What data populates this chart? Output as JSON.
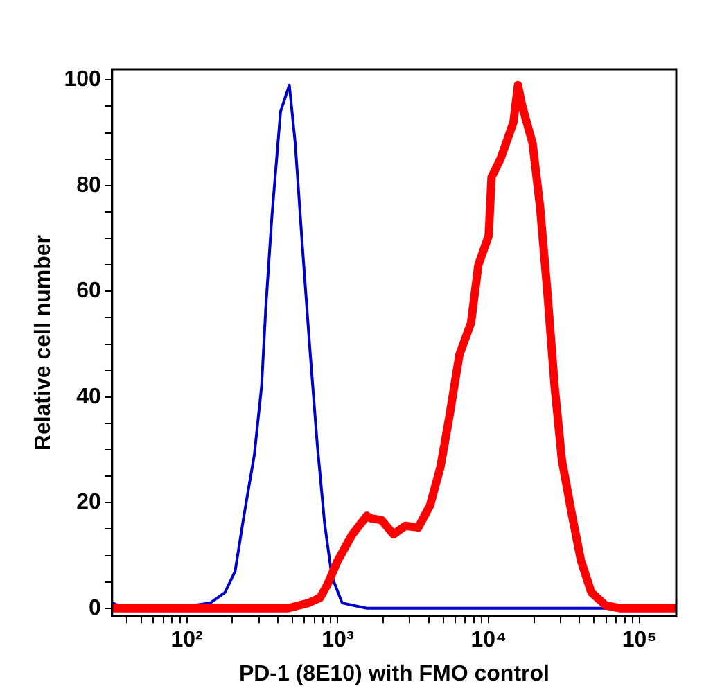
{
  "chart_data": {
    "type": "line",
    "xlabel": "PD-1 (8E10) with FMO control",
    "ylabel": "Relative cell number",
    "log": "x",
    "grid": false,
    "legend": false,
    "marker": "none",
    "xlim": [
      32,
      175000
    ],
    "ylim": [
      -1.5,
      102
    ],
    "xticks": [
      {
        "value": 40,
        "label": null
      },
      {
        "value": 50,
        "label": null
      },
      {
        "value": 60,
        "label": null
      },
      {
        "value": 70,
        "label": null
      },
      {
        "value": 80,
        "label": null
      },
      {
        "value": 90,
        "label": null
      },
      {
        "value": 100,
        "label": "10²"
      },
      {
        "value": 200,
        "label": null
      },
      {
        "value": 300,
        "label": null
      },
      {
        "value": 400,
        "label": null
      },
      {
        "value": 500,
        "label": null
      },
      {
        "value": 600,
        "label": null
      },
      {
        "value": 700,
        "label": null
      },
      {
        "value": 800,
        "label": null
      },
      {
        "value": 900,
        "label": null
      },
      {
        "value": 1000,
        "label": "10³"
      },
      {
        "value": 2000,
        "label": null
      },
      {
        "value": 3000,
        "label": null
      },
      {
        "value": 4000,
        "label": null
      },
      {
        "value": 5000,
        "label": null
      },
      {
        "value": 6000,
        "label": null
      },
      {
        "value": 7000,
        "label": null
      },
      {
        "value": 8000,
        "label": null
      },
      {
        "value": 9000,
        "label": null
      },
      {
        "value": 10000,
        "label": "10⁴"
      },
      {
        "value": 20000,
        "label": null
      },
      {
        "value": 30000,
        "label": null
      },
      {
        "value": 40000,
        "label": null
      },
      {
        "value": 50000,
        "label": null
      },
      {
        "value": 60000,
        "label": null
      },
      {
        "value": 70000,
        "label": null
      },
      {
        "value": 80000,
        "label": null
      },
      {
        "value": 90000,
        "label": null
      },
      {
        "value": 100000,
        "label": "10⁵"
      }
    ],
    "yticks": [
      0,
      {
        "value": 5,
        "label": null
      },
      {
        "value": 10,
        "label": null
      },
      {
        "value": 15,
        "label": null
      },
      20,
      {
        "value": 25,
        "label": null
      },
      {
        "value": 30,
        "label": null
      },
      {
        "value": 35,
        "label": null
      },
      40,
      {
        "value": 45,
        "label": null
      },
      {
        "value": 50,
        "label": null
      },
      {
        "value": 55,
        "label": null
      },
      60,
      {
        "value": 65,
        "label": null
      },
      {
        "value": 70,
        "label": null
      },
      {
        "value": 75,
        "label": null
      },
      80,
      {
        "value": 85,
        "label": null
      },
      {
        "value": 90,
        "label": null
      },
      {
        "value": 95,
        "label": null
      },
      100
    ],
    "series": [
      {
        "color": "#ff0000",
        "x": [
          32,
          468,
          640,
          764,
          855,
          1000,
          1250,
          1560,
          1670,
          1950,
          2340,
          2800,
          3420,
          4090,
          4790,
          5470,
          6400,
          7640,
          8550,
          10000,
          10450,
          11960,
          14600,
          15630,
          16700,
          19540,
          21900,
          24460,
          27350,
          30580,
          35730,
          40900,
          47900,
          59900,
          74800,
          175000
        ],
        "values": [
          0,
          0,
          1,
          2,
          4.5,
          9,
          14,
          17.5,
          17,
          16.7,
          14,
          15.6,
          15.3,
          19.5,
          26.7,
          36,
          48,
          54,
          65,
          70.5,
          81.6,
          85,
          92,
          99,
          95,
          88,
          76,
          60,
          42,
          28,
          17.5,
          9,
          3,
          0.5,
          0,
          0
        ]
      },
      {
        "color": "#0000cc",
        "x": [
          32,
          40,
          76,
          107,
          143,
          179,
          209,
          239,
          280,
          313,
          334,
          366,
          418,
          478,
          523,
          585,
          654,
          732,
          819,
          915,
          1070,
          1560,
          175000
        ],
        "values": [
          1,
          0,
          0,
          0.5,
          1,
          3,
          7,
          17.5,
          29,
          42,
          57,
          74,
          94,
          99,
          88,
          68,
          49,
          31,
          16,
          6,
          1,
          0,
          0
        ]
      }
    ]
  }
}
